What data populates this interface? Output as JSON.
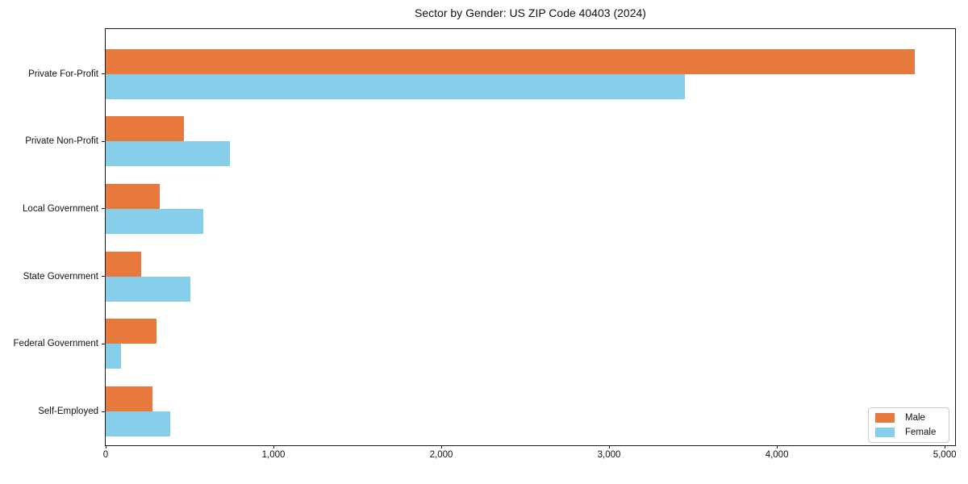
{
  "title": "Sector by Gender: US ZIP Code 40403 (2024)",
  "chart_data": {
    "type": "bar",
    "orientation": "horizontal",
    "title": "Sector by Gender: US ZIP Code 40403 (2024)",
    "categories": [
      "Private For-Profit",
      "Private Non-Profit",
      "Local Government",
      "State Government",
      "Federal Government",
      "Self-Employed"
    ],
    "series": [
      {
        "name": "Male",
        "color": "#e8793c",
        "values": [
          4820,
          465,
          320,
          210,
          305,
          280
        ]
      },
      {
        "name": "Female",
        "color": "#87ceeb",
        "values": [
          3450,
          740,
          580,
          505,
          90,
          385
        ]
      }
    ],
    "xlabel": "",
    "ylabel": "",
    "xlim": [
      0,
      5062
    ],
    "x_ticks": [
      0,
      1000,
      2000,
      3000,
      4000,
      5000
    ],
    "x_tick_labels": [
      "0",
      "1,000",
      "2,000",
      "3,000",
      "4,000",
      "5,000"
    ],
    "grid": false,
    "legend_position": "lower right"
  },
  "legend": {
    "items": [
      {
        "label": "Male"
      },
      {
        "label": "Female"
      }
    ]
  }
}
